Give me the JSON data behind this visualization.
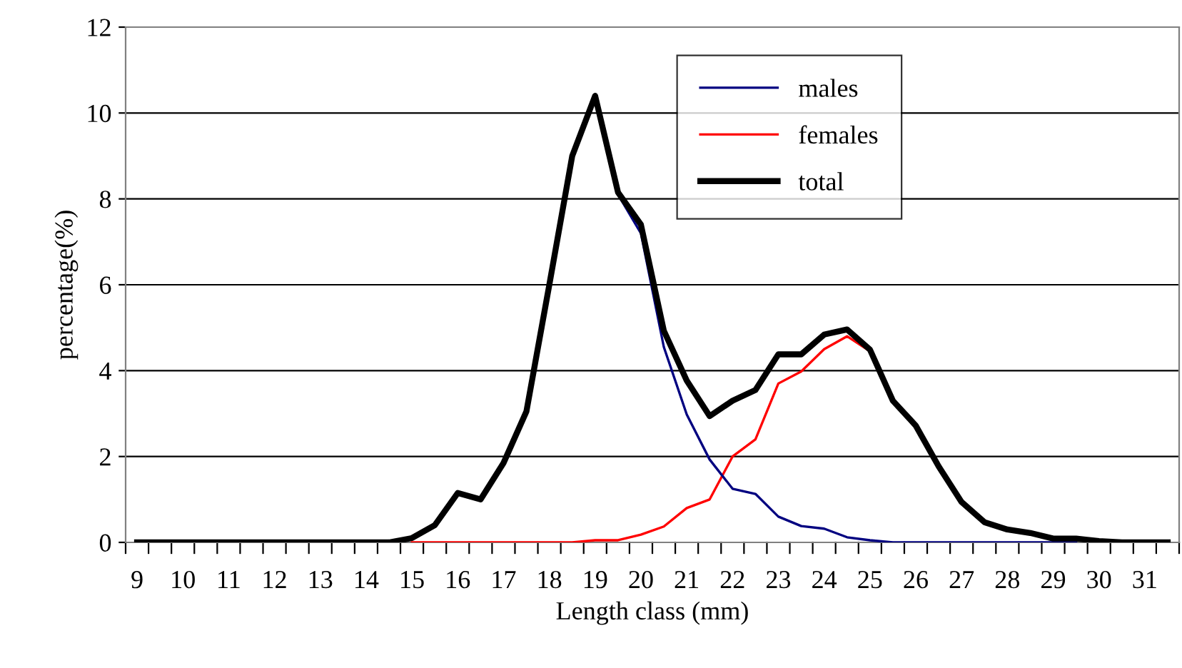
{
  "chart_data": {
    "type": "line",
    "xlabel": "Length class (mm)",
    "ylabel": "percentage(%)",
    "categories": [
      "9",
      null,
      "10",
      null,
      "11",
      null,
      "12",
      null,
      "13",
      null,
      "14",
      null,
      "15",
      null,
      "16",
      null,
      "17",
      null,
      "18",
      null,
      "19",
      null,
      "20",
      null,
      "21",
      null,
      "22",
      null,
      "23",
      null,
      "24",
      null,
      "25",
      null,
      "26",
      null,
      "27",
      null,
      "28",
      null,
      "29",
      null,
      "30",
      null,
      "31",
      null
    ],
    "ylim": [
      0,
      12
    ],
    "yticks": [
      0,
      2,
      4,
      6,
      8,
      10,
      12
    ],
    "grid": "y",
    "legend": "top",
    "marker": "none",
    "line_style": "solid",
    "series": [
      {
        "name": "males",
        "color": "#000080",
        "values": [
          null,
          null,
          null,
          null,
          null,
          null,
          null,
          null,
          null,
          null,
          null,
          null,
          null,
          null,
          null,
          null,
          null,
          null,
          null,
          null,
          null,
          8.1,
          7.2,
          4.55,
          2.98,
          1.93,
          1.25,
          1.13,
          0.6,
          0.38,
          0.32,
          0.12,
          0.05,
          0,
          0,
          0,
          0,
          0,
          0,
          0,
          0,
          0,
          null,
          null,
          null,
          null
        ]
      },
      {
        "name": "females",
        "color": "#ff0000",
        "values": [
          null,
          null,
          null,
          null,
          null,
          null,
          null,
          null,
          null,
          null,
          null,
          null,
          0,
          0,
          0,
          0,
          0,
          0,
          0,
          0,
          0.05,
          0.05,
          0.18,
          0.37,
          0.8,
          1.0,
          2.0,
          2.4,
          3.7,
          3.98,
          4.5,
          4.8,
          4.45,
          null,
          null,
          null,
          null,
          null,
          null,
          null,
          null,
          null,
          null,
          null,
          null,
          null
        ]
      },
      {
        "name": "total",
        "color": "#000000",
        "values": [
          0,
          0,
          0,
          0,
          0,
          0,
          0,
          0,
          0,
          0,
          0,
          0,
          0.1,
          0.4,
          1.15,
          1.0,
          1.85,
          3.05,
          6.0,
          9.0,
          10.4,
          8.15,
          7.4,
          4.93,
          3.77,
          2.94,
          3.3,
          3.55,
          4.38,
          4.38,
          4.84,
          4.96,
          4.49,
          3.3,
          2.72,
          1.77,
          0.94,
          0.47,
          0.3,
          0.22,
          0.09,
          0.09,
          0.03,
          0,
          0,
          0
        ]
      }
    ]
  }
}
